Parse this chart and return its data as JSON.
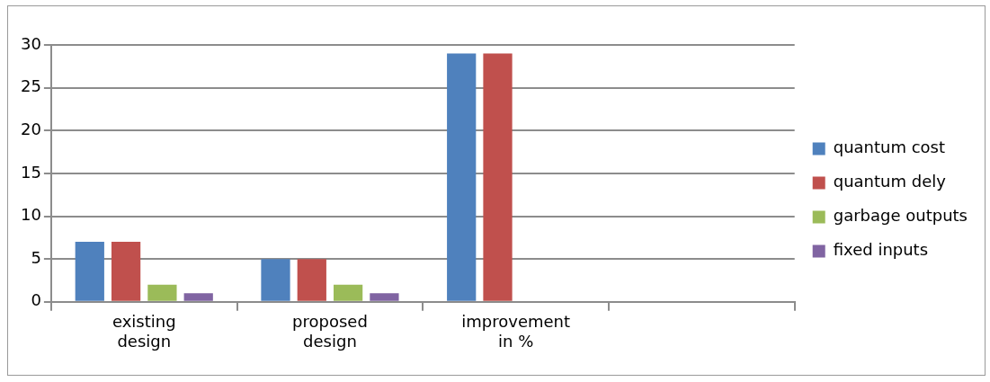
{
  "chart_data": {
    "type": "bar",
    "categories": [
      "existing design",
      "proposed design",
      "improvement in %",
      null
    ],
    "series": [
      {
        "name": "quantum cost",
        "color": "#4f81bd",
        "values": [
          7,
          5,
          29,
          null
        ]
      },
      {
        "name": "quantum dely",
        "color": "#c0504d",
        "values": [
          7,
          5,
          29,
          null
        ]
      },
      {
        "name": "garbage outputs",
        "color": "#9bbb59",
        "values": [
          2,
          2,
          0,
          null
        ]
      },
      {
        "name": "fixed inputs",
        "color": "#8064a2",
        "values": [
          1,
          1,
          0,
          null
        ]
      }
    ],
    "ylim": [
      0,
      30
    ],
    "yticks": [
      0,
      5,
      10,
      15,
      20,
      25,
      30
    ],
    "grid": "y",
    "legend": "right"
  }
}
